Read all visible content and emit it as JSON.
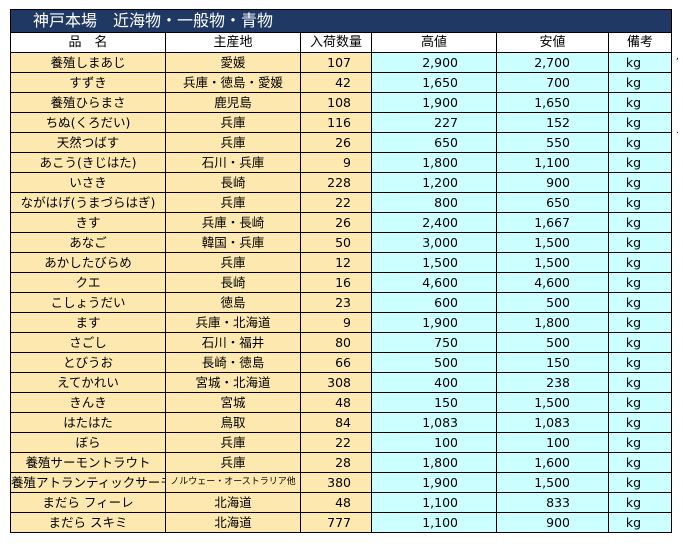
{
  "title": "神戸本場　近海物・一般物・青物",
  "headers": [
    "品　名",
    "主産地",
    "入荷数量",
    "高値",
    "安値",
    "備考"
  ],
  "rows": [
    {
      "name": "養殖しまあじ",
      "origin": "愛媛",
      "qty": "107",
      "high": "2,900",
      "low": "2,700",
      "unit": "kg"
    },
    {
      "name": "すずき",
      "origin": "兵庫・徳島・愛媛",
      "qty": "42",
      "high": "1,650",
      "low": "700",
      "unit": "kg"
    },
    {
      "name": "養殖ひらまさ",
      "origin": "鹿児島",
      "qty": "108",
      "high": "1,900",
      "low": "1,650",
      "unit": "kg"
    },
    {
      "name": "ちぬ(くろだい)",
      "origin": "兵庫",
      "qty": "116",
      "high": "227",
      "low": "152",
      "unit": "kg"
    },
    {
      "name": "天然つばす",
      "origin": "兵庫",
      "qty": "26",
      "high": "650",
      "low": "550",
      "unit": "kg"
    },
    {
      "name": "あこう(きじはた)",
      "origin": "石川・兵庫",
      "qty": "9",
      "high": "1,800",
      "low": "1,100",
      "unit": "kg"
    },
    {
      "name": "いさき",
      "origin": "長崎",
      "qty": "228",
      "high": "1,200",
      "low": "900",
      "unit": "kg"
    },
    {
      "name": "ながはげ(うまづらはぎ)",
      "origin": "兵庫",
      "qty": "22",
      "high": "800",
      "low": "650",
      "unit": "kg"
    },
    {
      "name": "きす",
      "origin": "兵庫・長崎",
      "qty": "26",
      "high": "2,400",
      "low": "1,667",
      "unit": "kg"
    },
    {
      "name": "あなご",
      "origin": "韓国・兵庫",
      "qty": "50",
      "high": "3,000",
      "low": "1,500",
      "unit": "kg"
    },
    {
      "name": "あかしたびらめ",
      "origin": "兵庫",
      "qty": "12",
      "high": "1,500",
      "low": "1,500",
      "unit": "kg"
    },
    {
      "name": "クエ",
      "origin": "長崎",
      "qty": "16",
      "high": "4,600",
      "low": "4,600",
      "unit": "kg"
    },
    {
      "name": "こしょうだい",
      "origin": "徳島",
      "qty": "23",
      "high": "600",
      "low": "500",
      "unit": "kg"
    },
    {
      "name": "ます",
      "origin": "兵庫・北海道",
      "qty": "9",
      "high": "1,900",
      "low": "1,800",
      "unit": "kg"
    },
    {
      "name": "さごし",
      "origin": "石川・福井",
      "qty": "80",
      "high": "750",
      "low": "500",
      "unit": "kg"
    },
    {
      "name": "とびうお",
      "origin": "長崎・徳島",
      "qty": "66",
      "high": "500",
      "low": "150",
      "unit": "kg"
    },
    {
      "name": "えてかれい",
      "origin": "宮城・北海道",
      "qty": "308",
      "high": "400",
      "low": "238",
      "unit": "kg"
    },
    {
      "name": "きんき",
      "origin": "宮城",
      "qty": "48",
      "high": "150",
      "low": "1,500",
      "unit": "kg"
    },
    {
      "name": "はたはた",
      "origin": "鳥取",
      "qty": "84",
      "high": "1,083",
      "low": "1,083",
      "unit": "kg"
    },
    {
      "name": "ぼら",
      "origin": "兵庫",
      "qty": "22",
      "high": "100",
      "low": "100",
      "unit": "kg"
    },
    {
      "name": "養殖サーモントラウト",
      "origin": "兵庫",
      "qty": "28",
      "high": "1,800",
      "low": "1,600",
      "unit": "kg"
    },
    {
      "name": "養殖アトランティックサーモン",
      "origin": "ノルウェー・オーストラリア他",
      "qty": "380",
      "high": "1,900",
      "low": "1,500",
      "unit": "kg",
      "small": true
    },
    {
      "name": "まだら フィーレ",
      "origin": "北海道",
      "qty": "48",
      "high": "1,100",
      "low": "833",
      "unit": "kg"
    },
    {
      "name": "まだら スキミ",
      "origin": "北海道",
      "qty": "777",
      "high": "1,100",
      "low": "900",
      "unit": "kg"
    }
  ]
}
